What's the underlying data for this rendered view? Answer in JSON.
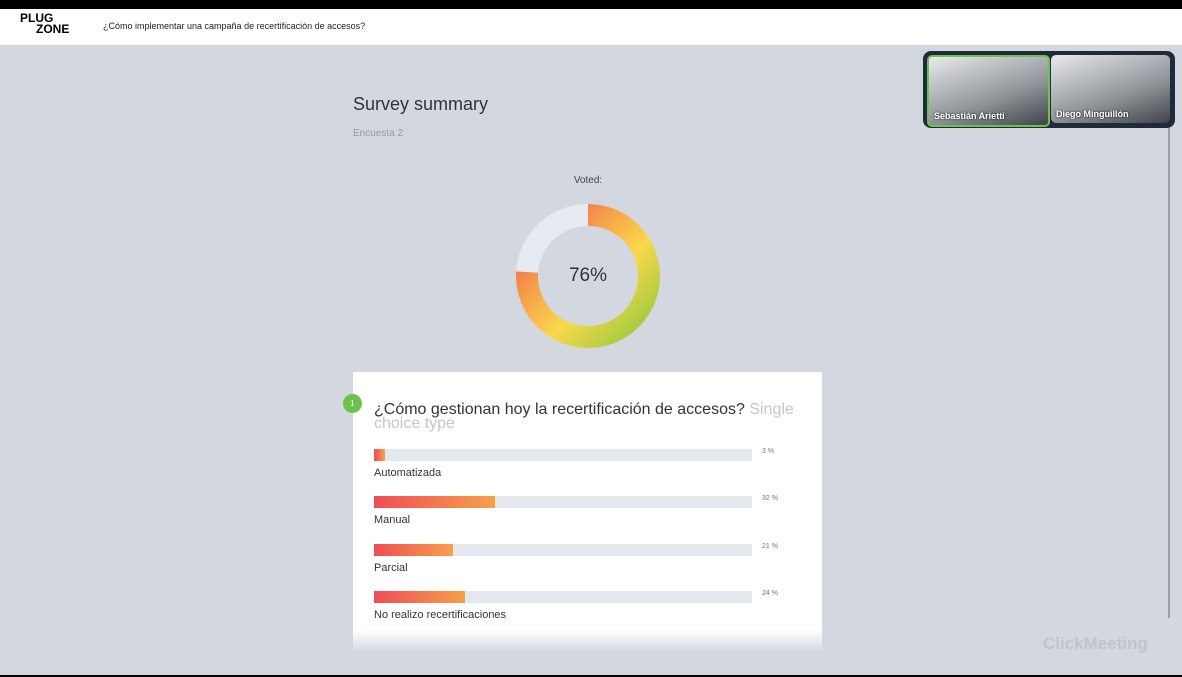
{
  "header": {
    "logo": {
      "top": "PLUG",
      "bottom": "ZONE"
    },
    "title": "¿Cómo implementar una campaña de recertificación de accesos?"
  },
  "video": {
    "participants": [
      "Sebastián Arietti",
      "Diego Minguillón"
    ]
  },
  "survey": {
    "title": "Survey summary",
    "subtitle": "Encuesta 2",
    "voted": {
      "label": "Voted:",
      "value": 76,
      "value_label": "76%"
    },
    "question": {
      "number": "1",
      "text": "¿Cómo gestionan hoy la recertificación de accesos?",
      "type": "Single choice type",
      "options": [
        {
          "label": "Automatizada",
          "value": 3,
          "value_label": "3 %"
        },
        {
          "label": "Manual",
          "value": 32,
          "value_label": "32 %"
        },
        {
          "label": "Parcial",
          "value": 21,
          "value_label": "21 %"
        },
        {
          "label": "No realizo recertificaciones",
          "value": 24,
          "value_label": "24 %"
        }
      ]
    }
  },
  "brand": "ClickMeeting"
}
